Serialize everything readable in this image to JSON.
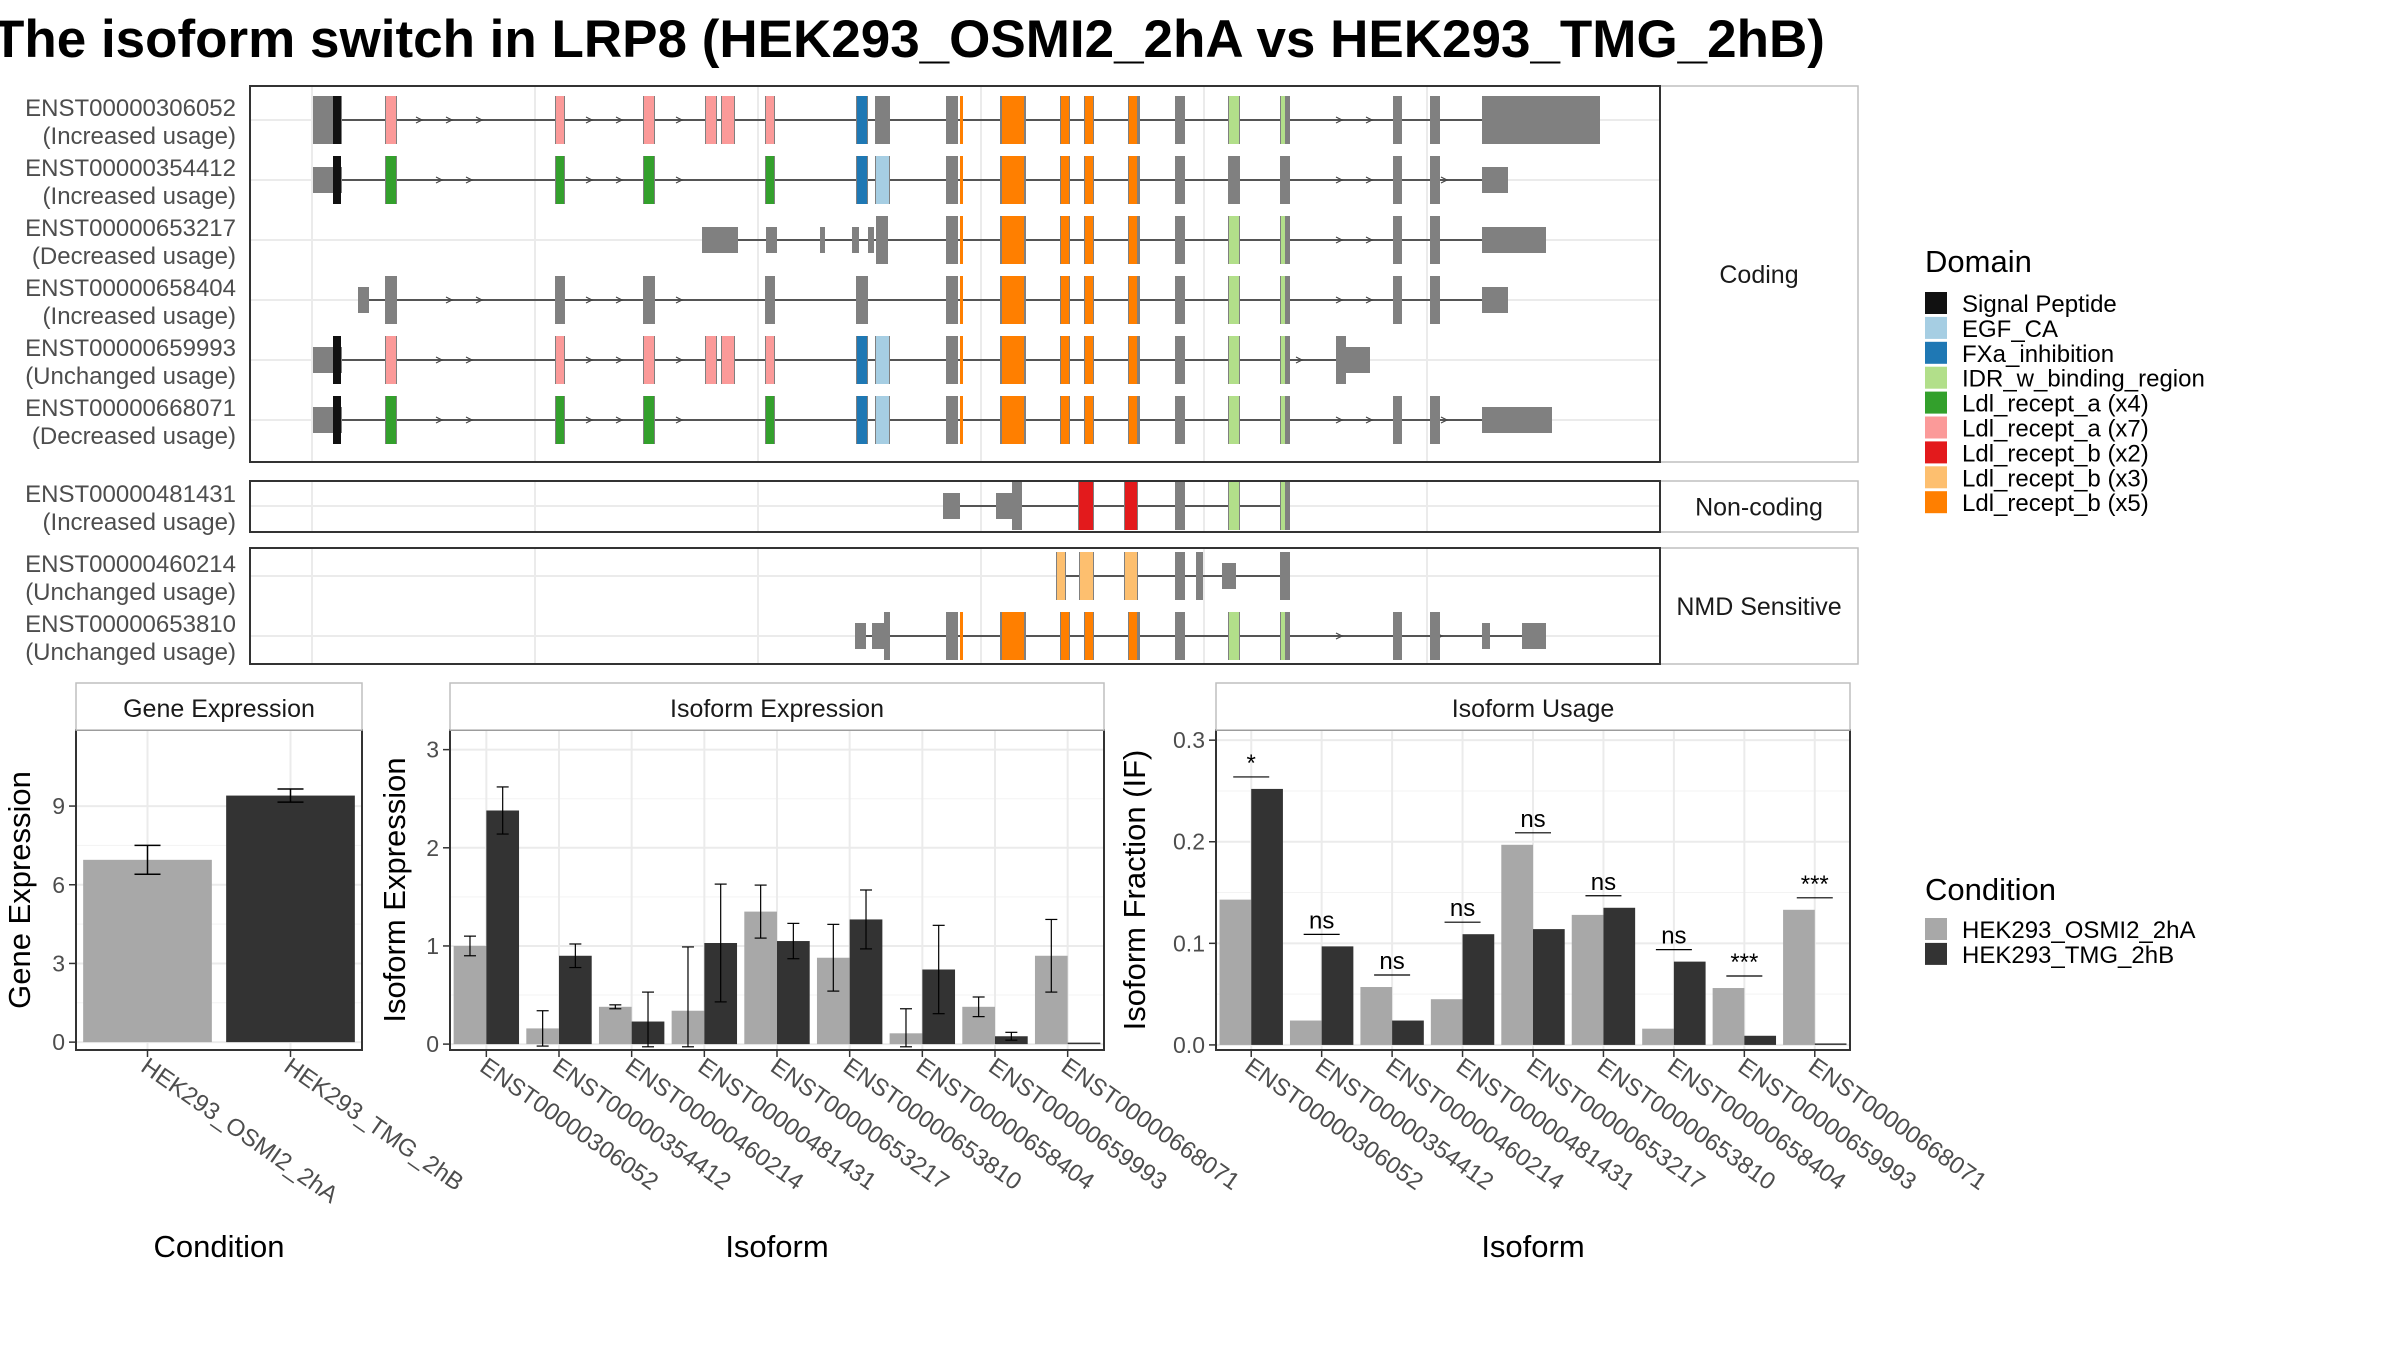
{
  "title": "The isoform switch in LRP8 (HEK293_OSMI2_2hA vs HEK293_TMG_2hB)",
  "colors": {
    "cond_a": "#A8A8A8",
    "cond_b": "#333333",
    "exon": "#808080",
    "panel_border": "#333333",
    "strip_border": "#BFBFBF",
    "grid": "#EBEBEB"
  },
  "structure": {
    "groups": [
      {
        "label": "Coding",
        "isoforms": [
          {
            "id": "ENST00000306052",
            "usage": "(Increased usage)"
          },
          {
            "id": "ENST00000354412",
            "usage": "(Increased usage)"
          },
          {
            "id": "ENST00000653217",
            "usage": "(Decreased usage)"
          },
          {
            "id": "ENST00000658404",
            "usage": "(Increased usage)"
          },
          {
            "id": "ENST00000659993",
            "usage": "(Unchanged usage)"
          },
          {
            "id": "ENST00000668071",
            "usage": "(Decreased usage)"
          }
        ]
      },
      {
        "label": "Non-coding",
        "isoforms": [
          {
            "id": "ENST00000481431",
            "usage": "(Increased usage)"
          }
        ]
      },
      {
        "label": "NMD Sensitive",
        "isoforms": [
          {
            "id": "ENST00000460214",
            "usage": "(Unchanged usage)"
          },
          {
            "id": "ENST00000653810",
            "usage": "(Unchanged usage)"
          }
        ]
      }
    ]
  },
  "domain_legend": {
    "title": "Domain",
    "items": [
      {
        "label": "Signal Peptide",
        "color": "#111111"
      },
      {
        "label": "EGF_CA",
        "color": "#A6CEE3"
      },
      {
        "label": "FXa_inhibition",
        "color": "#1F78B4"
      },
      {
        "label": "IDR_w_binding_region",
        "color": "#B2DF8A"
      },
      {
        "label": "Ldl_recept_a (x4)",
        "color": "#33A02C"
      },
      {
        "label": "Ldl_recept_a (x7)",
        "color": "#FB9A99"
      },
      {
        "label": "Ldl_recept_b (x2)",
        "color": "#E31A1C"
      },
      {
        "label": "Ldl_recept_b (x3)",
        "color": "#FDBF6F"
      },
      {
        "label": "Ldl_recept_b (x5)",
        "color": "#FF7F00"
      }
    ]
  },
  "condition_legend": {
    "title": "Condition",
    "items": [
      {
        "label": "HEK293_OSMI2_2hA",
        "color": "#A8A8A8"
      },
      {
        "label": "HEK293_TMG_2hB",
        "color": "#333333"
      }
    ]
  },
  "chart_data": [
    {
      "type": "bar",
      "title": "Gene Expression",
      "xlabel": "Condition",
      "ylabel": "Gene Expression",
      "categories": [
        "HEK293_OSMI2_2hA",
        "HEK293_TMG_2hB"
      ],
      "values": [
        6.95,
        9.4
      ],
      "errors": [
        0.55,
        0.25
      ],
      "yticks": [
        0,
        3,
        6,
        9
      ],
      "ylim": [
        -0.3,
        11.9
      ]
    },
    {
      "type": "bar",
      "title": "Isoform Expression",
      "xlabel": "Isoform",
      "ylabel": "Isoform Expression",
      "categories": [
        "ENST00000306052",
        "ENST00000354412",
        "ENST00000460214",
        "ENST00000481431",
        "ENST00000653217",
        "ENST00000653810",
        "ENST00000658404",
        "ENST00000659993",
        "ENST00000668071"
      ],
      "series": [
        {
          "name": "HEK293_OSMI2_2hA",
          "values": [
            1.0,
            0.16,
            0.38,
            0.34,
            1.35,
            0.88,
            0.11,
            0.38,
            0.9
          ],
          "errors": [
            0.1,
            0.18,
            0.02,
            0.65,
            0.27,
            0.34,
            0.25,
            0.1,
            0.37
          ]
        },
        {
          "name": "HEK293_TMG_2hB",
          "values": [
            2.38,
            0.9,
            0.23,
            1.03,
            1.05,
            1.27,
            0.76,
            0.08,
            0.0
          ],
          "errors": [
            0.24,
            0.12,
            0.3,
            0.6,
            0.18,
            0.3,
            0.45,
            0.04,
            0.0
          ]
        }
      ],
      "yticks": [
        0,
        1,
        2,
        3
      ],
      "ylim": [
        -0.06,
        3.2
      ]
    },
    {
      "type": "bar",
      "title": "Isoform Usage",
      "xlabel": "Isoform",
      "ylabel": "Isoform Fraction (IF)",
      "categories": [
        "ENST00000306052",
        "ENST00000354412",
        "ENST00000460214",
        "ENST00000481431",
        "ENST00000653217",
        "ENST00000653810",
        "ENST00000658404",
        "ENST00000659993",
        "ENST00000668071"
      ],
      "series": [
        {
          "name": "HEK293_OSMI2_2hA",
          "values": [
            0.143,
            0.024,
            0.057,
            0.045,
            0.197,
            0.128,
            0.016,
            0.056,
            0.133
          ]
        },
        {
          "name": "HEK293_TMG_2hB",
          "values": [
            0.252,
            0.097,
            0.024,
            0.109,
            0.114,
            0.135,
            0.082,
            0.009,
            0.0
          ]
        }
      ],
      "significance": [
        "*",
        "ns",
        "ns",
        "ns",
        "ns",
        "ns",
        "ns",
        "***",
        "***"
      ],
      "yticks": [
        0.0,
        0.1,
        0.2,
        0.3
      ],
      "ytick_labels": [
        "0.0",
        "0.1",
        "0.2",
        "0.3"
      ],
      "ylim": [
        -0.005,
        0.31
      ]
    }
  ]
}
